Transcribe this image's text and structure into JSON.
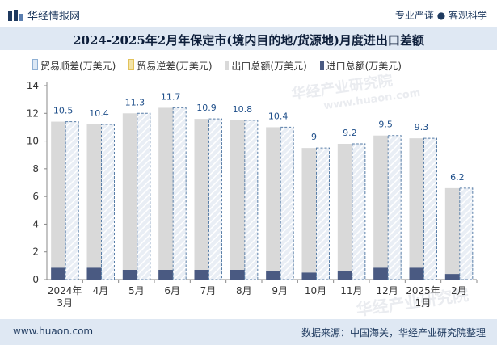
{
  "header": {
    "brand": "华经情报网",
    "tagline": "专业严谨 ● 客观科学"
  },
  "title": "2024-2025年2月年保定市(境内目的地/货源地)月度进出口差额",
  "legend": [
    {
      "label": "贸易顺差(万美元)",
      "color": "#dce8f5",
      "key": "surplus"
    },
    {
      "label": "贸易逆差(万美元)",
      "color": "#f3e3a6",
      "key": "deficit"
    },
    {
      "label": "出口总额(万美元)",
      "color": "#d9d9d9",
      "key": "export"
    },
    {
      "label": "进口总额(万美元)",
      "color": "#4a5a82",
      "key": "import"
    }
  ],
  "watermarks": [
    "华经产业研究院",
    "www.huaon.com",
    "华经产业研究院"
  ],
  "footer": {
    "site": "www.huaon.com",
    "source": "数据来源：中国海关，华经产业研究院整理"
  },
  "chart_data": {
    "type": "bar",
    "title": "2024-2025年2月年保定市(境内目的地/货源地)月度进出口差额",
    "categories": [
      "2024年\n3月",
      "4月",
      "5月",
      "6月",
      "7月",
      "8月",
      "9月",
      "10月",
      "11月",
      "12月",
      "2025年\n1月",
      "2月"
    ],
    "ylim": [
      0,
      14
    ],
    "yticks": [
      0,
      2,
      4,
      6,
      8,
      10,
      12,
      14
    ],
    "series": [
      {
        "name": "出口总额(万美元)",
        "key": "export",
        "values": [
          11.4,
          11.2,
          12.0,
          12.4,
          11.6,
          11.5,
          11.0,
          9.5,
          9.8,
          10.4,
          10.2,
          6.6
        ]
      },
      {
        "name": "贸易顺差(万美元)",
        "key": "surplus",
        "values": [
          10.5,
          10.4,
          11.3,
          11.7,
          10.9,
          10.8,
          10.4,
          9,
          9.2,
          9.5,
          9.3,
          6.2
        ],
        "labels": [
          "10.5",
          "10.4",
          "11.3",
          "11.7",
          "10.9",
          "10.8",
          "10.4",
          "9",
          "9.2",
          "9.5",
          "9.3",
          "6.2"
        ]
      },
      {
        "name": "进口总额(万美元)",
        "key": "import",
        "values": [
          0.85,
          0.85,
          0.7,
          0.7,
          0.7,
          0.7,
          0.6,
          0.5,
          0.6,
          0.85,
          0.85,
          0.4
        ]
      }
    ],
    "grid": false,
    "legend_position": "top"
  }
}
